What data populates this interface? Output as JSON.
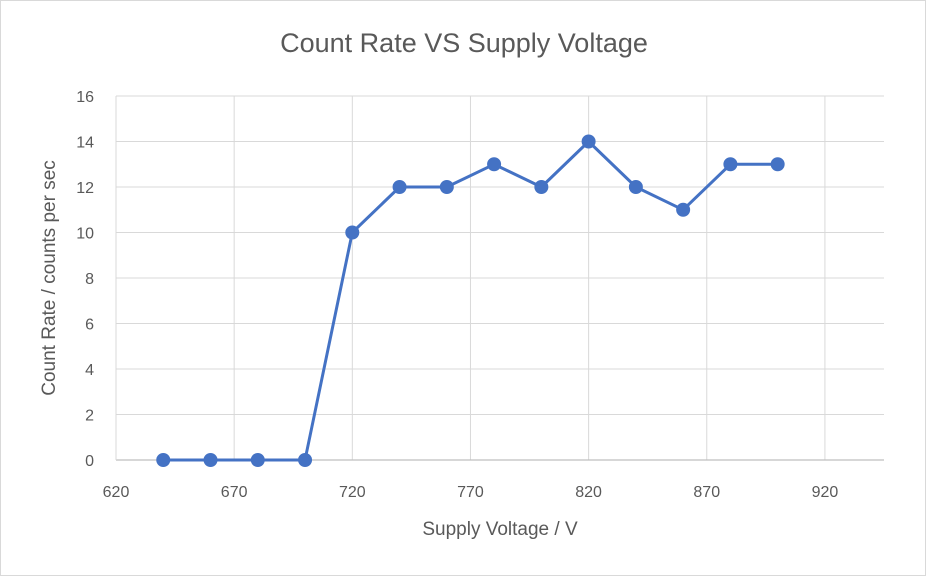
{
  "chart_data": {
    "type": "scatter",
    "title": "Count Rate VS Supply Voltage",
    "xlabel": "Supply Voltage / V",
    "ylabel": "Count Rate / counts per sec",
    "xlim": [
      620,
      945
    ],
    "ylim": [
      0,
      16
    ],
    "xticks": [
      620,
      670,
      720,
      770,
      820,
      870,
      920
    ],
    "yticks": [
      0,
      2,
      4,
      6,
      8,
      10,
      12,
      14,
      16
    ],
    "grid": true,
    "legend": "none",
    "series": [
      {
        "color": "#4472c4",
        "x": [
          640,
          660,
          680,
          700,
          720,
          740,
          760,
          780,
          800,
          820,
          840,
          860,
          880,
          900
        ],
        "y": [
          0,
          0,
          0,
          0,
          10,
          12,
          12,
          13,
          12,
          14,
          12,
          11,
          13,
          13
        ]
      }
    ],
    "colors": {
      "grid": "#d9d9d9",
      "axis": "#bfbfbf",
      "text": "#595959",
      "border": "#d9d9d9"
    }
  }
}
